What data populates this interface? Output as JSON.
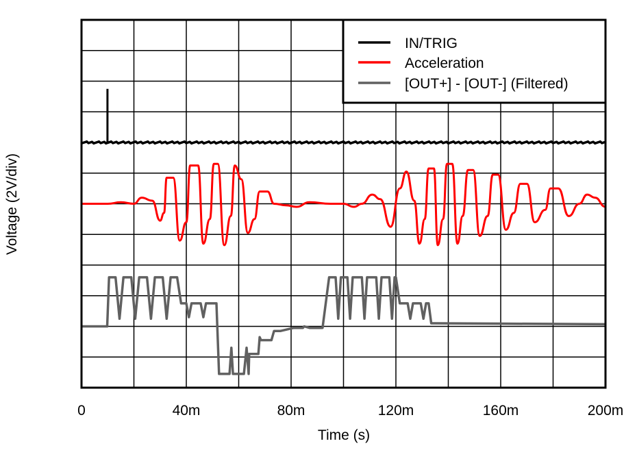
{
  "chart_data": {
    "type": "line",
    "title": "",
    "xlabel": "Time (s)",
    "ylabel": "Voltage (2V/div)",
    "xlim": [
      0,
      0.2
    ],
    "x_ticks": [
      0,
      0.04,
      0.08,
      0.12,
      0.16,
      0.2
    ],
    "x_tick_labels": [
      "0",
      "40m",
      "80m",
      "120m",
      "160m",
      "200m"
    ],
    "x_divisions": 10,
    "y_divisions": 12,
    "y_scale": "2V/div",
    "grid": true,
    "legend_position": "top-right",
    "series": [
      {
        "name": "IN/TRIG",
        "color": "#000000",
        "baseline_div": 8.0,
        "description": "Flat baseline with a single trigger spike at ~10ms rising ~1.75 div",
        "points": [
          [
            0,
            0
          ],
          [
            0.0098,
            0
          ],
          [
            0.0099,
            1.75
          ],
          [
            0.0101,
            1.75
          ],
          [
            0.0102,
            0
          ],
          [
            0.2,
            0
          ]
        ]
      },
      {
        "name": "Acceleration",
        "color": "#ff0000",
        "baseline_div": 6.0,
        "description": "Two decaying sinusoidal bursts: first at ~20-60ms (peak ~1.25 div), second at ~95-200ms (peak ~1.3 div, slower decay)",
        "points": [
          [
            0,
            0
          ],
          [
            0.01,
            0
          ],
          [
            0.015,
            0.05
          ],
          [
            0.02,
            0
          ],
          [
            0.023,
            0.2
          ],
          [
            0.027,
            0.1
          ],
          [
            0.03,
            -0.55
          ],
          [
            0.0315,
            -0.3
          ],
          [
            0.0325,
            0.85
          ],
          [
            0.035,
            0.85
          ],
          [
            0.0375,
            -1.2
          ],
          [
            0.04,
            -0.6
          ],
          [
            0.0415,
            1.25
          ],
          [
            0.0445,
            1.25
          ],
          [
            0.0465,
            -1.3
          ],
          [
            0.049,
            -0.5
          ],
          [
            0.0505,
            1.3
          ],
          [
            0.052,
            1.3
          ],
          [
            0.0545,
            -1.35
          ],
          [
            0.057,
            -0.4
          ],
          [
            0.0585,
            1.25
          ],
          [
            0.061,
            0.8
          ],
          [
            0.0635,
            -0.95
          ],
          [
            0.066,
            -0.5
          ],
          [
            0.068,
            0.4
          ],
          [
            0.071,
            0.4
          ],
          [
            0.0735,
            0
          ],
          [
            0.078,
            -0.05
          ],
          [
            0.082,
            -0.1
          ],
          [
            0.087,
            0.05
          ],
          [
            0.095,
            0
          ],
          [
            0.1,
            0
          ],
          [
            0.104,
            -0.1
          ],
          [
            0.107,
            0
          ],
          [
            0.111,
            0.3
          ],
          [
            0.114,
            0.15
          ],
          [
            0.118,
            -0.75
          ],
          [
            0.1215,
            0.5
          ],
          [
            0.124,
            1.05
          ],
          [
            0.127,
            0.1
          ],
          [
            0.129,
            -1.3
          ],
          [
            0.131,
            -0.5
          ],
          [
            0.1325,
            1.15
          ],
          [
            0.1345,
            1.15
          ],
          [
            0.136,
            -1.35
          ],
          [
            0.138,
            -0.5
          ],
          [
            0.1395,
            1.3
          ],
          [
            0.1415,
            1.3
          ],
          [
            0.1435,
            -1.3
          ],
          [
            0.1455,
            -0.4
          ],
          [
            0.1475,
            1.1
          ],
          [
            0.1495,
            1.1
          ],
          [
            0.152,
            -1.05
          ],
          [
            0.155,
            -0.4
          ],
          [
            0.157,
            0.95
          ],
          [
            0.159,
            0.95
          ],
          [
            0.162,
            -0.85
          ],
          [
            0.165,
            -0.3
          ],
          [
            0.1675,
            0.65
          ],
          [
            0.17,
            0.65
          ],
          [
            0.173,
            -0.6
          ],
          [
            0.177,
            -0.2
          ],
          [
            0.179,
            0.5
          ],
          [
            0.182,
            0.5
          ],
          [
            0.186,
            -0.4
          ],
          [
            0.19,
            0
          ],
          [
            0.193,
            0.3
          ],
          [
            0.196,
            0.2
          ],
          [
            0.2,
            -0.1
          ]
        ]
      },
      {
        "name": "[OUT+] - [OUT-] (Filtered)",
        "color": "#606060",
        "baseline_div": 2.0,
        "description": "Square-wave-like filtered output: high steps (~+1.6 div) during accel bursts with dips, mid steps (~+0.75 div), negative excursions (~-1.55 div) after first burst, settling back to baseline",
        "levels_div": {
          "baseline": 0,
          "high": 1.6,
          "mid": 0.75,
          "low": -1.55,
          "low_mid": -0.45,
          "near_zero": 0.1
        }
      }
    ]
  }
}
